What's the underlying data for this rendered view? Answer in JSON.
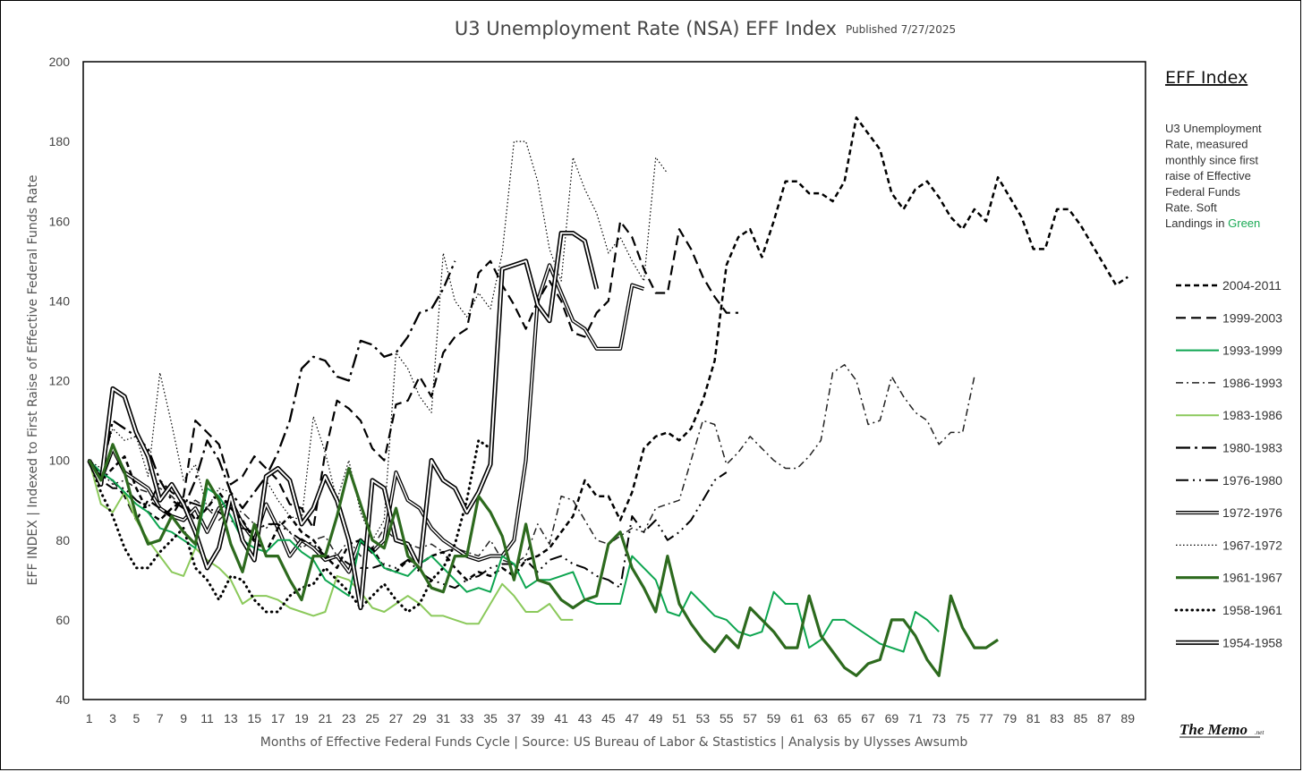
{
  "header": {
    "title": "U3 Unemployment Rate (NSA) EFF Index",
    "published": "Published 7/27/2025"
  },
  "side": {
    "heading": "EFF Index",
    "description_lines": [
      "U3 Unemployment",
      "Rate, measured",
      "monthly since first",
      "raise of Effective",
      "Federal Funds",
      "Rate. Soft"
    ],
    "last_line_prefix": "Landings in ",
    "last_line_highlight": "Green",
    "highlight_color": "#1aaa55"
  },
  "logo": {
    "main": "The Memo",
    "suffix": ".net"
  },
  "chart_data": {
    "type": "line",
    "title": "U3 Unemployment Rate (NSA) EFF Index",
    "xlabel": "Months of Effective Federal Funds Cycle  |  Source: US Bureau of Labor & Stastistics  |  Analysis by Ulysses Awsumb",
    "ylabel": "EFF INDEX | Indexed to First Raise of Effective Federal Funds Rate",
    "xlim": [
      0.5,
      90.5
    ],
    "ylim": [
      40,
      200
    ],
    "x_ticks": [
      1,
      3,
      5,
      7,
      9,
      11,
      13,
      15,
      17,
      19,
      21,
      23,
      25,
      27,
      29,
      31,
      33,
      35,
      37,
      39,
      41,
      43,
      45,
      47,
      49,
      51,
      53,
      55,
      57,
      59,
      61,
      63,
      65,
      67,
      69,
      71,
      73,
      75,
      77,
      79,
      81,
      83,
      85,
      87,
      89
    ],
    "y_ticks": [
      40,
      60,
      80,
      100,
      120,
      140,
      160,
      180,
      200
    ],
    "legend_position": "right",
    "series": [
      {
        "name": "2004-2011",
        "color": "#000000",
        "style": "dash-short",
        "width": 2.5,
        "values": [
          100,
          95,
          98,
          101,
          93,
          87,
          85,
          88,
          90,
          85,
          88,
          92,
          88,
          85,
          80,
          77,
          83,
          86,
          82,
          80,
          76,
          73,
          79,
          80,
          78,
          73,
          72,
          75,
          74,
          76,
          77,
          73,
          70,
          72,
          71,
          73,
          71,
          75,
          76,
          78,
          82,
          86,
          95,
          91,
          91,
          85,
          92,
          103,
          106,
          107,
          105,
          108,
          115,
          125,
          149,
          156,
          158,
          151,
          160,
          170,
          170,
          167,
          167,
          165,
          170,
          186,
          182,
          178,
          167,
          163,
          168,
          170,
          166,
          161,
          158,
          163,
          160,
          171,
          166,
          161,
          153,
          153,
          163,
          163,
          159,
          154,
          149,
          144,
          146
        ]
      },
      {
        "name": "1999-2003",
        "color": "#000000",
        "style": "dash-long",
        "width": 2.2,
        "values": [
          100,
          96,
          95,
          91,
          85,
          90,
          88,
          86,
          91,
          110,
          107,
          104,
          94,
          96,
          101,
          98,
          95,
          89,
          88,
          83,
          102,
          115,
          113,
          110,
          103,
          100,
          114,
          115,
          121,
          116,
          127,
          131,
          133,
          147,
          150,
          144,
          139,
          133,
          140,
          145,
          140,
          132,
          131,
          137,
          140,
          160,
          156,
          148,
          142,
          142,
          158,
          153,
          146,
          141,
          137,
          137
        ]
      },
      {
        "name": "1993-1999",
        "color": "#0da550",
        "style": "solid",
        "width": 2.0,
        "values": [
          100,
          97,
          95,
          92,
          89,
          87,
          83,
          82,
          80,
          78,
          93,
          91,
          86,
          80,
          78,
          77,
          80,
          80,
          77,
          75,
          70,
          68,
          66,
          80,
          77,
          73,
          72,
          71,
          74,
          76,
          73,
          70,
          67,
          68,
          67,
          76,
          74,
          68,
          70,
          70,
          71,
          72,
          65,
          64,
          64,
          64,
          76,
          73,
          70,
          62,
          61,
          67,
          64,
          61,
          60,
          57,
          56,
          57,
          67,
          64,
          64,
          53,
          55,
          60,
          60,
          58,
          56,
          54,
          53,
          52,
          62,
          60,
          57
        ]
      },
      {
        "name": "1986-1993",
        "color": "#222222",
        "style": "dashdot",
        "width": 1.5,
        "values": [
          100,
          97,
          94,
          95,
          93,
          92,
          93,
          91,
          88,
          90,
          88,
          85,
          88,
          87,
          84,
          83,
          85,
          82,
          78,
          80,
          81,
          76,
          80,
          76,
          78,
          83,
          80,
          79,
          78,
          79,
          77,
          78,
          77,
          76,
          80,
          75,
          74,
          76,
          84,
          79,
          91,
          90,
          85,
          80,
          79,
          81,
          83,
          82,
          88,
          89,
          90,
          100,
          110,
          109,
          99,
          102,
          106,
          103,
          100,
          98,
          98,
          101,
          105,
          122,
          124,
          120,
          109,
          110,
          121,
          116,
          112,
          110,
          104,
          107,
          107,
          121
        ]
      },
      {
        "name": "1983-1986",
        "color": "#8bc95b",
        "style": "solid",
        "width": 2.0,
        "values": [
          100,
          89,
          87,
          92,
          85,
          80,
          76,
          72,
          71,
          78,
          75,
          73,
          70,
          64,
          66,
          66,
          65,
          63,
          62,
          61,
          62,
          71,
          70,
          67,
          63,
          62,
          64,
          66,
          64,
          61,
          61,
          60,
          59,
          59,
          64,
          69,
          66,
          62,
          62,
          64,
          60,
          60
        ]
      },
      {
        "name": "1980-1983",
        "color": "#000000",
        "style": "dashdot-long",
        "width": 2.3,
        "values": [
          100,
          96,
          110,
          108,
          106,
          103,
          95,
          90,
          88,
          95,
          105,
          100,
          92,
          88,
          92,
          96,
          102,
          110,
          123,
          126,
          125,
          121,
          120,
          130,
          129,
          126,
          127,
          131,
          137,
          138,
          143,
          150
        ]
      },
      {
        "name": "1976-1980",
        "color": "#000000",
        "style": "dashdotdot",
        "width": 2.0,
        "values": [
          100,
          95,
          93,
          93,
          90,
          88,
          95,
          92,
          90,
          89,
          88,
          87,
          85,
          83,
          82,
          84,
          84,
          82,
          80,
          79,
          76,
          76,
          74,
          73,
          73,
          74,
          73,
          75,
          72,
          70,
          69,
          68,
          70,
          71,
          73,
          74,
          74,
          75,
          72,
          75,
          76,
          74,
          73,
          71,
          70,
          68,
          86,
          82,
          85,
          80,
          82,
          85,
          90,
          95,
          97
        ]
      },
      {
        "name": "1972-1976",
        "color": "#000000",
        "style": "double",
        "width": 1.3,
        "values": [
          100,
          95,
          103,
          97,
          95,
          93,
          88,
          86,
          85,
          88,
          82,
          88,
          90,
          84,
          80,
          89,
          83,
          76,
          80,
          78,
          75,
          76,
          72,
          80,
          77,
          80,
          97,
          90,
          88,
          83,
          80,
          78,
          76,
          75,
          76,
          76,
          80,
          100,
          140,
          149,
          142,
          135,
          133,
          128,
          128,
          128,
          144,
          143
        ]
      },
      {
        "name": "1967-1972",
        "color": "#000000",
        "style": "dotted-fine",
        "width": 1.2,
        "values": [
          100,
          98,
          108,
          105,
          106,
          96,
          122,
          109,
          95,
          99,
          88,
          93,
          92,
          80,
          76,
          95,
          90,
          86,
          85,
          111,
          102,
          90,
          100,
          87,
          80,
          85,
          127,
          123,
          116,
          112,
          152,
          140,
          136,
          142,
          138,
          152,
          180,
          180,
          170,
          153,
          145,
          176,
          168,
          162,
          152,
          156,
          150,
          145,
          176,
          172
        ]
      },
      {
        "name": "1961-1967",
        "color": "#2d6a1e",
        "style": "solid",
        "width": 3.2,
        "values": [
          100,
          95,
          104,
          97,
          86,
          79,
          80,
          86,
          82,
          79,
          95,
          90,
          79,
          72,
          84,
          76,
          76,
          70,
          65,
          76,
          76,
          86,
          98,
          89,
          80,
          78,
          88,
          76,
          73,
          68,
          67,
          76,
          76,
          91,
          87,
          81,
          70,
          84,
          70,
          69,
          65,
          63,
          65,
          66,
          79,
          82,
          73,
          68,
          62,
          76,
          64,
          59,
          55,
          52,
          56,
          53,
          63,
          60,
          57,
          53,
          53,
          66,
          56,
          52,
          48,
          46,
          49,
          50,
          60,
          60,
          56,
          50,
          46,
          66,
          58,
          53,
          53,
          55
        ]
      },
      {
        "name": "1958-1961",
        "color": "#000000",
        "style": "dot-bold",
        "width": 3.0,
        "values": [
          100,
          92,
          86,
          78,
          73,
          73,
          77,
          80,
          83,
          73,
          70,
          65,
          71,
          70,
          65,
          62,
          62,
          66,
          68,
          69,
          73,
          70,
          67,
          63,
          66,
          69,
          65,
          62,
          64,
          70,
          73,
          79,
          90,
          105,
          103
        ]
      },
      {
        "name": "1954-1958",
        "color": "#000000",
        "style": "double",
        "width": 1.6,
        "values": [
          100,
          94,
          118,
          116,
          107,
          101,
          90,
          94,
          89,
          82,
          73,
          78,
          91,
          80,
          75,
          96,
          98,
          95,
          84,
          88,
          96,
          90,
          80,
          63,
          95,
          93,
          80,
          79,
          73,
          100,
          95,
          93,
          87,
          92,
          99,
          148,
          149,
          150,
          139,
          135,
          157,
          157,
          155,
          143
        ]
      }
    ]
  }
}
